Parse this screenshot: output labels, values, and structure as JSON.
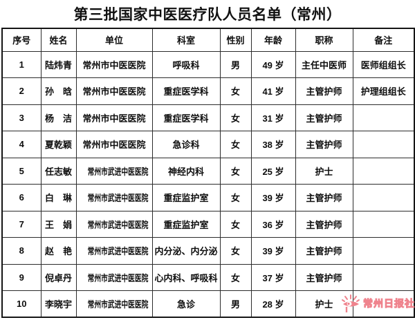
{
  "page": {
    "title": "第三批国家中医医疗队人员名单（常州）"
  },
  "table": {
    "columns": [
      {
        "key": "index",
        "label": "序号"
      },
      {
        "key": "name",
        "label": "姓名"
      },
      {
        "key": "unit",
        "label": "单位"
      },
      {
        "key": "department",
        "label": "科室"
      },
      {
        "key": "gender",
        "label": "性别"
      },
      {
        "key": "age",
        "label": "年龄"
      },
      {
        "key": "title",
        "label": "职称"
      },
      {
        "key": "remark",
        "label": "备注"
      }
    ],
    "rows": [
      [
        "1",
        "陆炜青",
        "常州市中医医院",
        "呼吸科",
        "男",
        "49 岁",
        "主任中医师",
        "医师组组长"
      ],
      [
        "2",
        "孙　晗",
        "常州市中医医院",
        "重症医学科",
        "女",
        "41 岁",
        "主管护师",
        "护理组组长"
      ],
      [
        "3",
        "杨　洁",
        "常州市中医医院",
        "重症医学科",
        "女",
        "31 岁",
        "主管护师",
        ""
      ],
      [
        "4",
        "夏乾颖",
        "常州市中医医院",
        "急诊科",
        "女",
        "38 岁",
        "主管护师",
        ""
      ],
      [
        "5",
        "任志敏",
        "常州市武进中医医院",
        "神经内科",
        "女",
        "25 岁",
        "护士",
        ""
      ],
      [
        "6",
        "白　琳",
        "常州市武进中医医院",
        "重症监护室",
        "女",
        "39 岁",
        "主管护师",
        ""
      ],
      [
        "7",
        "王　娟",
        "常州市武进中医医院",
        "重症监护室",
        "女",
        "36 岁",
        "主管护师",
        ""
      ],
      [
        "8",
        "赵　艳",
        "常州市武进中医医院",
        "内分泌、内分泌",
        "女",
        "39 岁",
        "主管护师",
        ""
      ],
      [
        "9",
        "倪卓丹",
        "常州市武进中医医院",
        "心内科、呼吸科",
        "女",
        "37 岁",
        "主管护师",
        ""
      ],
      [
        "10",
        "李晓宇",
        "常州市武进中医医院",
        "急诊",
        "男",
        "28 岁",
        "护士",
        ""
      ]
    ]
  },
  "watermark": {
    "publisher": "常州日报社",
    "icon": "eye-logo-icon",
    "accent_color": "#ef838d"
  }
}
